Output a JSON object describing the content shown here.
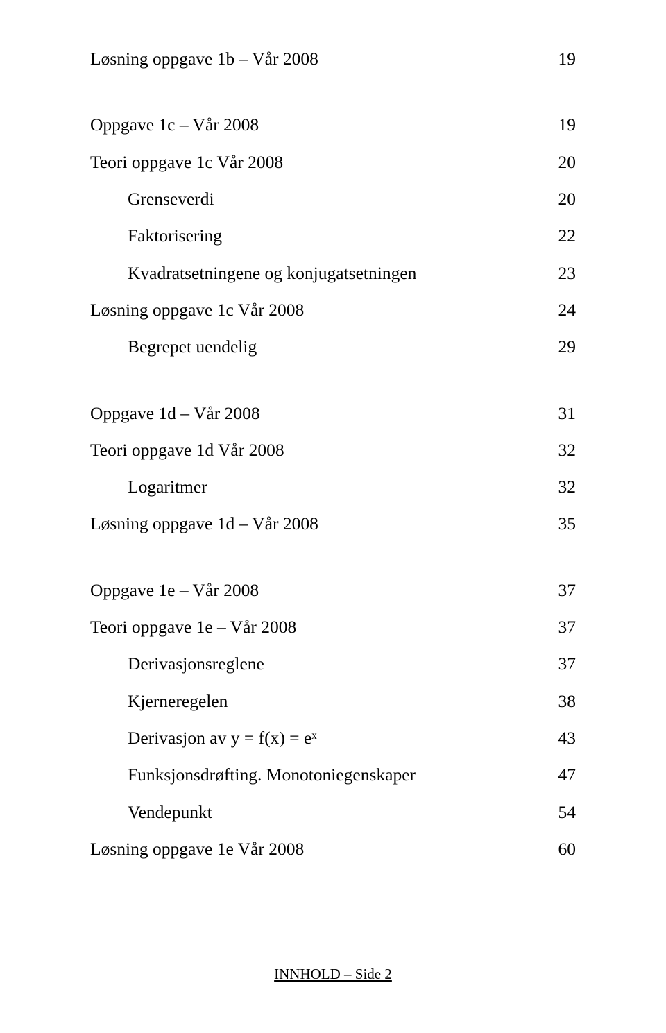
{
  "fontFamily": "Times New Roman",
  "textColor": "#000000",
  "backgroundColor": "#ffffff",
  "baseFontSizePt": 19,
  "footerFontSizePt": 16,
  "lines": [
    {
      "label": "Løsning oppgave 1b – Vår 2008",
      "page": "19",
      "indent": 0
    },
    {
      "gap": true
    },
    {
      "label": "Oppgave 1c – Vår 2008",
      "page": "19",
      "indent": 0
    },
    {
      "label": "Teori oppgave 1c Vår 2008",
      "page": "20",
      "indent": 0
    },
    {
      "label": "Grenseverdi",
      "page": "20",
      "indent": 1
    },
    {
      "label": "Faktorisering",
      "page": "22",
      "indent": 1
    },
    {
      "label": "Kvadratsetningene og konjugatsetningen",
      "page": "23",
      "indent": 1
    },
    {
      "label": "Løsning oppgave 1c Vår 2008",
      "page": "24",
      "indent": 0
    },
    {
      "label": "Begrepet uendelig",
      "page": "29",
      "indent": 1
    },
    {
      "gap": true
    },
    {
      "label": "Oppgave 1d – Vår 2008",
      "page": "31",
      "indent": 0
    },
    {
      "label": "Teori oppgave 1d Vår 2008",
      "page": "32",
      "indent": 0
    },
    {
      "label": "Logaritmer",
      "page": "32",
      "indent": 1
    },
    {
      "label": "Løsning oppgave 1d – Vår 2008",
      "page": "35",
      "indent": 0
    },
    {
      "gap": true
    },
    {
      "label": "Oppgave 1e – Vår 2008",
      "page": "37",
      "indent": 0
    },
    {
      "label": "Teori oppgave 1e – Vår 2008",
      "page": "37",
      "indent": 0
    },
    {
      "label": "Derivasjonsreglene",
      "page": "37",
      "indent": 1
    },
    {
      "label": "Kjerneregelen",
      "page": "38",
      "indent": 1
    },
    {
      "label": "Derivasjon av y = f(x) = eˣ",
      "page": "43",
      "indent": 1
    },
    {
      "label": "Funksjonsdrøfting. Monotoniegenskaper",
      "page": "47",
      "indent": 1
    },
    {
      "label": "Vendepunkt",
      "page": "54",
      "indent": 1
    },
    {
      "label": "Løsning oppgave 1e Vår 2008",
      "page": "60",
      "indent": 0
    }
  ],
  "footer": "INNHOLD – Side 2"
}
